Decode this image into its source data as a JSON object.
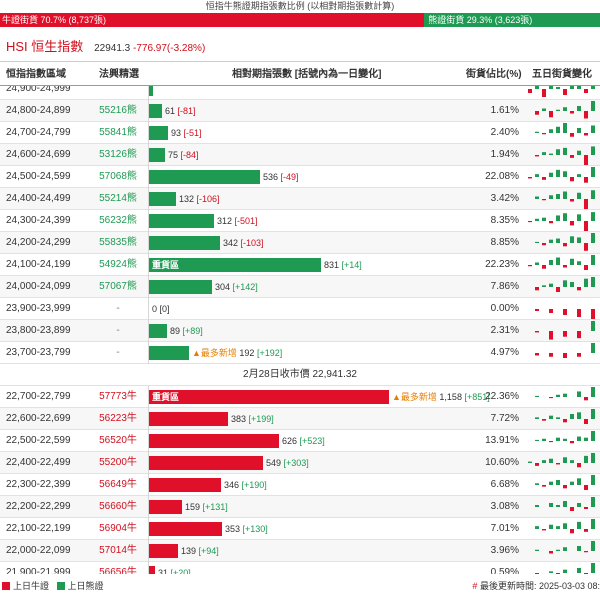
{
  "header": {
    "title": "恒指牛熊證期指張數比例 (以相對期指張數計算)",
    "bull_label": "牛證街貨 70.7% (8,737張)",
    "bear_label": "熊證街貨 29.3% (3,623張)",
    "bull_ratio": 0.707
  },
  "index": {
    "code": "HSI 恒生指數",
    "value": "22941.3",
    "change": "-776.97(-3.28%)"
  },
  "columns": {
    "range": "恒指指數區域",
    "code": "法興精選",
    "bar": "相對期指張數 [括號內為一日變化]",
    "pct": "街貨佔比(%)",
    "five_day": "五日街貨變化"
  },
  "bear_rows": [
    {
      "range": "24,900-24,999",
      "code": "",
      "contracts": 19,
      "label": "",
      "delta": "",
      "pct": "",
      "tag": "",
      "new_tag": "",
      "spark": [
        -2,
        3,
        -4,
        2,
        1,
        -3,
        5,
        2,
        -2,
        4
      ]
    },
    {
      "range": "24,800-24,899",
      "code": "55216熊",
      "contracts": 61,
      "label": "61",
      "delta": "[-81]",
      "pct": "1.61%",
      "tag": "",
      "new_tag": "",
      "spark": [
        0,
        -3,
        2,
        -5,
        1,
        3,
        -2,
        4,
        -6,
        8
      ]
    },
    {
      "range": "24,700-24,799",
      "code": "55841熊",
      "contracts": 93,
      "label": "93",
      "delta": "[-51]",
      "pct": "2.40%",
      "tag": "",
      "new_tag": "",
      "spark": [
        0,
        1,
        -1,
        3,
        5,
        8,
        -3,
        4,
        -2,
        6
      ]
    },
    {
      "range": "24,600-24,699",
      "code": "53126熊",
      "contracts": 75,
      "label": "75",
      "delta": "[-84]",
      "pct": "1.94%",
      "tag": "",
      "new_tag": "",
      "spark": [
        0,
        -1,
        2,
        1,
        4,
        5,
        -2,
        3,
        -7,
        6
      ]
    },
    {
      "range": "24,500-24,599",
      "code": "57068熊",
      "contracts": 536,
      "label": "536",
      "delta": "[-49]",
      "pct": "22.08%",
      "tag": "",
      "new_tag": "",
      "spark": [
        -1,
        2,
        -2,
        3,
        5,
        4,
        -3,
        2,
        -4,
        7
      ]
    },
    {
      "range": "24,400-24,499",
      "code": "55214熊",
      "contracts": 132,
      "label": "132",
      "delta": "[-106]",
      "pct": "3.42%",
      "tag": "",
      "new_tag": "",
      "spark": [
        0,
        2,
        -1,
        3,
        4,
        6,
        -2,
        5,
        -8,
        7
      ]
    },
    {
      "range": "24,300-24,399",
      "code": "56232熊",
      "contracts": 312,
      "label": "312",
      "delta": "[-501]",
      "pct": "8.35%",
      "tag": "",
      "new_tag": "",
      "spark": [
        -1,
        2,
        3,
        -2,
        5,
        7,
        -4,
        6,
        -9,
        8
      ]
    },
    {
      "range": "24,200-24,299",
      "code": "55835熊",
      "contracts": 342,
      "label": "342",
      "delta": "[-103]",
      "pct": "8.85%",
      "tag": "",
      "new_tag": "",
      "spark": [
        0,
        1,
        -2,
        3,
        4,
        -3,
        6,
        5,
        -7,
        9
      ]
    },
    {
      "range": "24,100-24,199",
      "code": "54924熊",
      "contracts": 831,
      "label": "831",
      "delta": "[+14]",
      "pct": "22.23%",
      "tag": "重貨區",
      "new_tag": "",
      "spark": [
        -1,
        2,
        -3,
        4,
        6,
        -2,
        5,
        3,
        -4,
        8
      ]
    },
    {
      "range": "24,000-24,099",
      "code": "57067熊",
      "contracts": 304,
      "label": "304",
      "delta": "[+142]",
      "pct": "7.86%",
      "tag": "",
      "new_tag": "",
      "spark": [
        0,
        -2,
        1,
        2,
        -3,
        4,
        3,
        -2,
        5,
        6
      ]
    },
    {
      "range": "23,900-23,999",
      "code": "-",
      "contracts": 0,
      "label": "0",
      "delta": "[0]",
      "pct": "0.00%",
      "tag": "",
      "new_tag": "",
      "spark": [
        0,
        -1,
        0,
        -2,
        0,
        -3,
        0,
        -4,
        0,
        -5
      ]
    },
    {
      "range": "23,800-23,899",
      "code": "-",
      "contracts": 89,
      "label": "89",
      "delta": "[+89]",
      "pct": "2.31%",
      "tag": "",
      "new_tag": "",
      "spark": [
        0,
        -1,
        0,
        -6,
        0,
        -4,
        0,
        -5,
        0,
        7
      ]
    },
    {
      "range": "23,700-23,799",
      "code": "-",
      "contracts": 192,
      "label": "192",
      "delta": "[+192]",
      "pct": "4.97%",
      "tag": "",
      "new_tag": "▲最多新增",
      "spark": [
        0,
        -2,
        0,
        -3,
        0,
        -4,
        0,
        -3,
        0,
        8
      ]
    }
  ],
  "separator": "2月28日收市價 22,941.32",
  "bull_rows": [
    {
      "range": "22,700-22,799",
      "code": "57773牛",
      "contracts": 1158,
      "label": "1,158",
      "delta": "[+851]",
      "pct": "22.36%",
      "tag": "重貨區",
      "new_tag": "▲最多新增",
      "spark": [
        0,
        1,
        0,
        -1,
        2,
        3,
        0,
        5,
        -3,
        9
      ]
    },
    {
      "range": "22,600-22,699",
      "code": "56223牛",
      "contracts": 383,
      "label": "383",
      "delta": "[+199]",
      "pct": "7.72%",
      "tag": "",
      "new_tag": "",
      "spark": [
        0,
        1,
        -1,
        2,
        1,
        -2,
        3,
        4,
        -3,
        6
      ]
    },
    {
      "range": "22,500-22,599",
      "code": "56520牛",
      "contracts": 626,
      "label": "626",
      "delta": "[+523]",
      "pct": "13.91%",
      "tag": "",
      "new_tag": "",
      "spark": [
        0,
        1,
        2,
        -1,
        3,
        2,
        -2,
        4,
        3,
        9
      ]
    },
    {
      "range": "22,400-22,499",
      "code": "55200牛",
      "contracts": 549,
      "label": "549",
      "delta": "[+303]",
      "pct": "10.60%",
      "tag": "",
      "new_tag": "",
      "spark": [
        1,
        -2,
        2,
        3,
        -1,
        4,
        2,
        -3,
        5,
        7
      ]
    },
    {
      "range": "22,300-22,399",
      "code": "56649牛",
      "contracts": 346,
      "label": "346",
      "delta": "[+190]",
      "pct": "6.68%",
      "tag": "",
      "new_tag": "",
      "spark": [
        0,
        1,
        -1,
        2,
        3,
        -2,
        2,
        4,
        -3,
        6
      ]
    },
    {
      "range": "22,200-22,299",
      "code": "56660牛",
      "contracts": 159,
      "label": "159",
      "delta": "[+131]",
      "pct": "3.08%",
      "tag": "",
      "new_tag": "",
      "spark": [
        0,
        1,
        0,
        2,
        1,
        3,
        -2,
        2,
        -1,
        5
      ]
    },
    {
      "range": "22,100-22,199",
      "code": "56904牛",
      "contracts": 353,
      "label": "353",
      "delta": "[+130]",
      "pct": "7.01%",
      "tag": "",
      "new_tag": "",
      "spark": [
        0,
        2,
        -1,
        3,
        2,
        4,
        -3,
        5,
        -2,
        7
      ]
    },
    {
      "range": "22,000-22,099",
      "code": "57014牛",
      "contracts": 139,
      "label": "139",
      "delta": "[+94]",
      "pct": "3.96%",
      "tag": "",
      "new_tag": "",
      "spark": [
        0,
        1,
        0,
        -2,
        1,
        3,
        0,
        4,
        -1,
        8
      ]
    },
    {
      "range": "21,900-21,999",
      "code": "56656牛",
      "contracts": 31,
      "label": "31",
      "delta": "[+20]",
      "pct": "0.59%",
      "tag": "",
      "new_tag": "",
      "spark": [
        0,
        -1,
        0,
        1,
        -2,
        2,
        0,
        3,
        -1,
        6
      ]
    }
  ],
  "footer": {
    "legend_bull": "上日牛證",
    "legend_bear": "上日熊證",
    "updated": "最後更新時間: 2025-03-03 08:"
  },
  "colors": {
    "bull": "#e0102a",
    "bear": "#1e9a52",
    "accent_orange": "#e67e00"
  },
  "bar_scale_max": 1400
}
